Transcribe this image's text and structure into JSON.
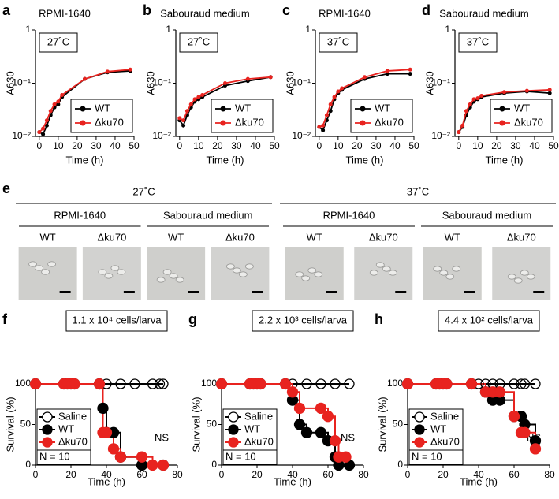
{
  "chart_data": [
    {
      "type": "line",
      "panel_label": "a",
      "title": "RPMI-1640",
      "annotation": "27˚C",
      "xlabel": "Time (h)",
      "ylabel": "A630",
      "x": [
        0,
        2,
        4,
        6,
        8,
        10,
        12,
        24,
        36,
        48
      ],
      "xlim": [
        -2,
        50
      ],
      "xticks": [
        0,
        10,
        20,
        30,
        40,
        50
      ],
      "ylim": [
        0.01,
        1
      ],
      "yticks": [
        {
          "value": 0.01,
          "label": "10⁻²"
        },
        {
          "value": 0.1,
          "label": "10⁻¹"
        },
        1
      ],
      "yscale": "log",
      "legend": "lower right",
      "series": [
        {
          "name": "WT",
          "color": "#000000",
          "values": [
            0.012,
            0.011,
            0.016,
            0.025,
            0.035,
            0.04,
            0.055,
            0.12,
            0.16,
            0.17
          ]
        },
        {
          "name": "Δku70",
          "color": "#e8231f",
          "values": [
            0.012,
            0.014,
            0.02,
            0.03,
            0.04,
            0.045,
            0.06,
            0.12,
            0.165,
            0.18
          ]
        }
      ]
    },
    {
      "type": "line",
      "panel_label": "b",
      "title": "Sabouraud medium",
      "annotation": "27˚C",
      "xlabel": "Time (h)",
      "ylabel": "A630",
      "x": [
        0,
        2,
        4,
        6,
        8,
        10,
        12,
        24,
        36,
        48
      ],
      "xlim": [
        -2,
        50
      ],
      "xticks": [
        0,
        10,
        20,
        30,
        40,
        50
      ],
      "ylim": [
        0.01,
        1
      ],
      "yticks": [
        {
          "value": 0.01,
          "label": "10⁻²"
        },
        {
          "value": 0.1,
          "label": "10⁻¹"
        },
        1
      ],
      "yscale": "log",
      "legend": "lower right",
      "series": [
        {
          "name": "WT",
          "color": "#000000",
          "values": [
            0.02,
            0.016,
            0.025,
            0.035,
            0.045,
            0.05,
            0.055,
            0.09,
            0.11,
            0.13
          ]
        },
        {
          "name": "Δku70",
          "color": "#e8231f",
          "values": [
            0.022,
            0.02,
            0.03,
            0.04,
            0.05,
            0.055,
            0.06,
            0.1,
            0.12,
            0.13
          ]
        }
      ]
    },
    {
      "type": "line",
      "panel_label": "c",
      "title": "RPMI-1640",
      "annotation": "37˚C",
      "xlabel": "Time (h)",
      "ylabel": "A630",
      "x": [
        0,
        2,
        4,
        6,
        8,
        10,
        12,
        24,
        36,
        48
      ],
      "xlim": [
        -2,
        50
      ],
      "xticks": [
        0,
        10,
        20,
        30,
        40,
        50
      ],
      "ylim": [
        0.01,
        1
      ],
      "yticks": [
        {
          "value": 0.01,
          "label": "10⁻²"
        },
        {
          "value": 0.1,
          "label": "10⁻¹"
        },
        1
      ],
      "yscale": "log",
      "legend": "lower right",
      "series": [
        {
          "name": "WT",
          "color": "#000000",
          "values": [
            0.015,
            0.013,
            0.02,
            0.03,
            0.05,
            0.065,
            0.075,
            0.12,
            0.15,
            0.15
          ]
        },
        {
          "name": "Δku70",
          "color": "#e8231f",
          "values": [
            0.015,
            0.016,
            0.025,
            0.04,
            0.055,
            0.07,
            0.08,
            0.13,
            0.17,
            0.18
          ]
        }
      ]
    },
    {
      "type": "line",
      "panel_label": "d",
      "title": "Sabouraud medium",
      "annotation": "37˚C",
      "xlabel": "Time (h)",
      "ylabel": "A630",
      "x": [
        0,
        2,
        4,
        6,
        8,
        10,
        12,
        24,
        36,
        48
      ],
      "xlim": [
        -2,
        50
      ],
      "xticks": [
        0,
        10,
        20,
        30,
        40,
        50
      ],
      "ylim": [
        0.01,
        1
      ],
      "yticks": [
        {
          "value": 0.01,
          "label": "10⁻²"
        },
        {
          "value": 0.1,
          "label": "10⁻¹"
        },
        1
      ],
      "yscale": "log",
      "legend": "lower right",
      "series": [
        {
          "name": "WT",
          "color": "#000000",
          "values": [
            0.012,
            0.015,
            0.025,
            0.035,
            0.045,
            0.05,
            0.055,
            0.065,
            0.07,
            0.065
          ]
        },
        {
          "name": "Δku70",
          "color": "#e8231f",
          "values": [
            0.012,
            0.016,
            0.03,
            0.04,
            0.05,
            0.052,
            0.058,
            0.068,
            0.072,
            0.075
          ]
        }
      ]
    },
    {
      "type": "survival",
      "panel_label": "f",
      "annotation": "1.1 x 10⁴ cells/larva",
      "note": "NS",
      "n_label": "N = 10",
      "xlabel": "Time (h)",
      "ylabel": "Survival (%)",
      "xlim": [
        0,
        80
      ],
      "xticks": [
        0,
        20,
        40,
        60,
        80
      ],
      "ylim": [
        0,
        100
      ],
      "yticks": [
        0,
        50,
        100
      ],
      "legend": "lower left",
      "series": [
        {
          "name": "Saline",
          "color": "#000000",
          "filled": false,
          "x": [
            0,
            16,
            18,
            20,
            22,
            36,
            40,
            48,
            56,
            66,
            70,
            72
          ],
          "values": [
            100,
            100,
            100,
            100,
            100,
            100,
            100,
            100,
            100,
            100,
            100,
            100
          ]
        },
        {
          "name": "WT",
          "color": "#000000",
          "filled": true,
          "x": [
            0,
            16,
            18,
            20,
            22,
            36,
            38,
            40,
            44,
            48,
            60,
            72
          ],
          "values": [
            100,
            100,
            100,
            100,
            100,
            100,
            70,
            40,
            40,
            10,
            0,
            0
          ]
        },
        {
          "name": "Δku70",
          "color": "#e8231f",
          "filled": true,
          "x": [
            0,
            16,
            18,
            20,
            22,
            36,
            38,
            40,
            44,
            48,
            60,
            66,
            72
          ],
          "values": [
            100,
            100,
            100,
            100,
            100,
            100,
            40,
            40,
            20,
            10,
            10,
            0,
            0
          ]
        }
      ]
    },
    {
      "type": "survival",
      "panel_label": "g",
      "annotation": "2.2 x 10³ cells/larva",
      "note": "NS",
      "n_label": "N = 10",
      "xlabel": "Time (h)",
      "ylabel": "Survival (%)",
      "xlim": [
        0,
        80
      ],
      "xticks": [
        0,
        20,
        40,
        60,
        80
      ],
      "ylim": [
        0,
        100
      ],
      "yticks": [
        0,
        50,
        100
      ],
      "legend": "lower left",
      "series": [
        {
          "name": "Saline",
          "color": "#000000",
          "filled": false,
          "x": [
            0,
            16,
            18,
            20,
            22,
            36,
            40,
            48,
            56,
            64,
            72
          ],
          "values": [
            100,
            100,
            100,
            100,
            100,
            100,
            100,
            100,
            100,
            100,
            100
          ]
        },
        {
          "name": "WT",
          "color": "#000000",
          "filled": true,
          "x": [
            0,
            16,
            18,
            20,
            22,
            36,
            40,
            44,
            48,
            56,
            60,
            64,
            66,
            72
          ],
          "values": [
            100,
            100,
            100,
            100,
            100,
            100,
            80,
            50,
            40,
            40,
            30,
            10,
            0,
            0
          ]
        },
        {
          "name": "Δku70",
          "color": "#e8231f",
          "filled": true,
          "x": [
            0,
            16,
            18,
            20,
            22,
            36,
            40,
            44,
            56,
            60,
            64,
            66,
            70
          ],
          "values": [
            100,
            100,
            100,
            100,
            100,
            100,
            90,
            70,
            70,
            60,
            30,
            10,
            10
          ]
        }
      ]
    },
    {
      "type": "survival",
      "panel_label": "h",
      "annotation": "4.4 x 10² cells/larva",
      "note": "NS",
      "n_label": "N = 10",
      "xlabel": "Time (h)",
      "ylabel": "Survival (%)",
      "xlim": [
        0,
        80
      ],
      "xticks": [
        0,
        20,
        40,
        60,
        80
      ],
      "ylim": [
        0,
        100
      ],
      "yticks": [
        0,
        50,
        100
      ],
      "legend": "lower left",
      "series": [
        {
          "name": "Saline",
          "color": "#000000",
          "filled": false,
          "x": [
            0,
            16,
            18,
            20,
            22,
            36,
            40,
            44,
            48,
            52,
            60,
            64,
            66,
            72
          ],
          "values": [
            100,
            100,
            100,
            100,
            100,
            100,
            100,
            100,
            100,
            100,
            100,
            100,
            100,
            100
          ]
        },
        {
          "name": "WT",
          "color": "#000000",
          "filled": true,
          "x": [
            0,
            16,
            18,
            20,
            22,
            36,
            44,
            48,
            52,
            60,
            64,
            66,
            72
          ],
          "values": [
            100,
            100,
            100,
            100,
            100,
            100,
            90,
            80,
            80,
            60,
            60,
            50,
            30
          ]
        },
        {
          "name": "Δku70",
          "color": "#e8231f",
          "filled": true,
          "x": [
            0,
            16,
            18,
            20,
            22,
            36,
            44,
            48,
            52,
            60,
            64,
            66,
            72
          ],
          "values": [
            100,
            100,
            100,
            100,
            100,
            100,
            90,
            90,
            90,
            60,
            40,
            40,
            20
          ]
        }
      ]
    }
  ],
  "panel_e": {
    "label": "e",
    "groups": [
      {
        "temperature": "27˚C",
        "media": [
          {
            "name": "RPMI-1640",
            "strains": [
              "WT",
              "Δku70"
            ]
          },
          {
            "name": "Sabouraud medium",
            "strains": [
              "WT",
              "Δku70"
            ]
          }
        ]
      },
      {
        "temperature": "37˚C",
        "media": [
          {
            "name": "RPMI-1640",
            "strains": [
              "WT",
              "Δku70"
            ]
          },
          {
            "name": "Sabouraud medium",
            "strains": [
              "WT",
              "Δku70"
            ]
          }
        ]
      }
    ]
  }
}
